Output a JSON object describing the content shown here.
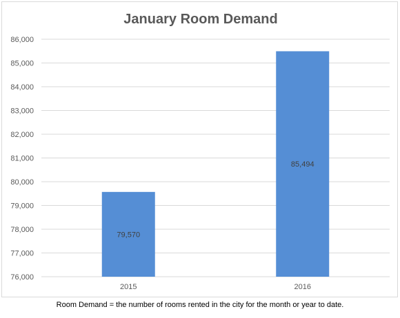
{
  "chart_data": {
    "type": "bar",
    "title": "January Room Demand",
    "categories": [
      "2015",
      "2016"
    ],
    "values": [
      79570,
      85494
    ],
    "data_labels": [
      "79,570",
      "85,494"
    ],
    "ylim": [
      76000,
      86000
    ],
    "yticks": [
      76000,
      77000,
      78000,
      79000,
      80000,
      81000,
      82000,
      83000,
      84000,
      85000,
      86000
    ],
    "ytick_labels": [
      "76,000",
      "77,000",
      "78,000",
      "79,000",
      "80,000",
      "81,000",
      "82,000",
      "83,000",
      "84,000",
      "85,000",
      "86,000"
    ],
    "xlabel": "",
    "ylabel": "",
    "grid": true,
    "legend": "none",
    "bar_color": "#558ED5",
    "grid_color": "#D9D9D9",
    "title_color": "#595959",
    "tick_color": "#595959"
  },
  "footnote": "Room Demand = the number of rooms rented in the city for the month or year to date."
}
